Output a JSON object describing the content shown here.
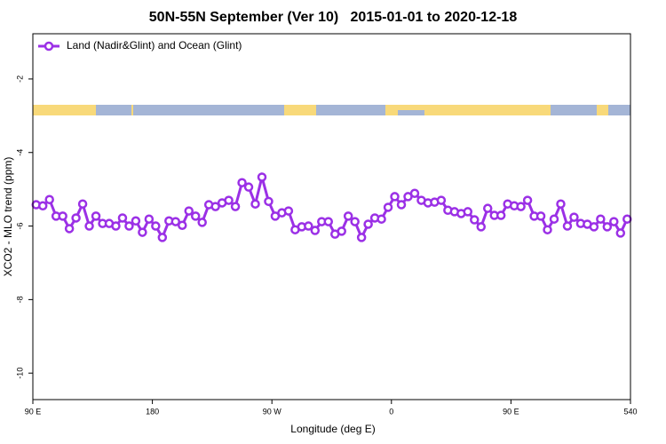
{
  "chart_data": {
    "type": "line",
    "title": "50N-55N September (Ver 10)   2015-01-01 to 2020-12-18",
    "x_label": "Longitude (deg E)",
    "y_label": "XCO2 - MLO trend (ppm)",
    "xlim": [
      90,
      540
    ],
    "ylim": [
      -10.72,
      -0.77
    ],
    "xticks": [
      {
        "value": 90,
        "label": "90 E"
      },
      180,
      {
        "value": 270,
        "label": "90 W"
      },
      0.0,
      {
        "value": 450,
        "label": "90 E"
      },
      540
    ],
    "yticks": [
      -2,
      -4,
      -6,
      -8,
      -10
    ],
    "legend": "upper left",
    "x": [
      92.5,
      97.5,
      102.5,
      107.5,
      112.5,
      117.5,
      122.5,
      127.5,
      132.5,
      137.5,
      142.5,
      147.5,
      152.5,
      157.5,
      162.5,
      167.5,
      172.5,
      177.5,
      182.5,
      187.5,
      192.5,
      197.5,
      202.5,
      207.5,
      212.5,
      217.5,
      222.5,
      227.5,
      232.5,
      237.5,
      242.5,
      247.5,
      252.5,
      257.5,
      262.5,
      267.5,
      272.5,
      277.5,
      282.5,
      287.5,
      292.5,
      297.5,
      302.5,
      307.5,
      312.5,
      317.5,
      322.5,
      327.5,
      332.5,
      337.5,
      342.5,
      347.5,
      352.5,
      357.5,
      362.5,
      367.5,
      372.5,
      377.5,
      382.5,
      387.5,
      392.5,
      397.5,
      402.5,
      407.5,
      412.5,
      417.5,
      422.5,
      427.5,
      432.5,
      437.5,
      442.5,
      447.5,
      452.5,
      457.5,
      462.5,
      467.5,
      472.5,
      477.5,
      482.5,
      487.5,
      492.5,
      497.5,
      502.5,
      507.5,
      512.5,
      517.5,
      522.5,
      527.5,
      532.5,
      537.5
    ],
    "series": [
      {
        "name": "Land (Nadir&Glint) and Ocean (Glint)",
        "color": "#9b30e6",
        "values": [
          -5.42,
          -5.45,
          -5.28,
          -5.73,
          -5.73,
          -6.07,
          -5.78,
          -5.4,
          -6.0,
          -5.73,
          -5.93,
          -5.93,
          -6.0,
          -5.78,
          -6.0,
          -5.86,
          -6.17,
          -5.81,
          -6.0,
          -6.31,
          -5.86,
          -5.88,
          -5.98,
          -5.59,
          -5.73,
          -5.9,
          -5.42,
          -5.47,
          -5.37,
          -5.3,
          -5.47,
          -4.82,
          -4.94,
          -5.4,
          -4.67,
          -5.33,
          -5.73,
          -5.64,
          -5.59,
          -6.1,
          -6.02,
          -6.0,
          -6.12,
          -5.88,
          -5.88,
          -6.22,
          -6.14,
          -5.73,
          -5.88,
          -6.31,
          -5.95,
          -5.78,
          -5.81,
          -5.49,
          -5.2,
          -5.42,
          -5.2,
          -5.11,
          -5.3,
          -5.37,
          -5.35,
          -5.3,
          -5.57,
          -5.61,
          -5.66,
          -5.61,
          -5.83,
          -6.02,
          -5.52,
          -5.71,
          -5.71,
          -5.4,
          -5.45,
          -5.47,
          -5.3,
          -5.73,
          -5.73,
          -6.1,
          -5.81,
          -5.4,
          -6.0,
          -5.76,
          -5.93,
          -5.95,
          -6.02,
          -5.81,
          -6.02,
          -5.88,
          -6.19,
          -5.81
        ]
      }
    ]
  }
}
